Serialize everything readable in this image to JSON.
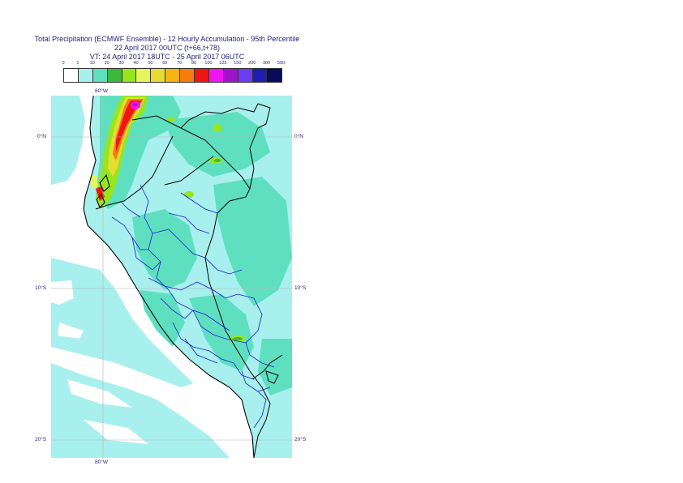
{
  "title": {
    "line1": "Total Precipitation (ECMWF Ensemble) - 12 Hourly Accumulation - 95th Percentile",
    "line2": "22 April 2017 00UTC (t+66,t+78)",
    "line3": "VT: 24 April 2017 18UTC - 25 April 2017 06UTC"
  },
  "legend": {
    "ticks": [
      "0",
      "1",
      "10",
      "20",
      "30",
      "40",
      "50",
      "60",
      "70",
      "80",
      "100",
      "125",
      "150",
      "200",
      "300",
      "500"
    ],
    "colors": [
      "#ffffff",
      "#a8f0ee",
      "#5ee0c0",
      "#3cb83c",
      "#96e61e",
      "#e6f55a",
      "#e6dc32",
      "#f5b414",
      "#f57d0a",
      "#f01414",
      "#f014f0",
      "#a014c8",
      "#6e3cf0",
      "#1e1eb4",
      "#0a0a5a"
    ]
  },
  "map": {
    "lat_labels": {
      "n0": "0°N",
      "s10": "10°S",
      "s20": "20°S"
    },
    "lon_labels": {
      "top": "80°W",
      "bottom": "80°W"
    },
    "colors": {
      "ocean": "#ffffff",
      "land_base": "#a8f0ee",
      "coast": "#000000",
      "admin": "#1a1acc",
      "grid": "#b4b4b4"
    }
  }
}
